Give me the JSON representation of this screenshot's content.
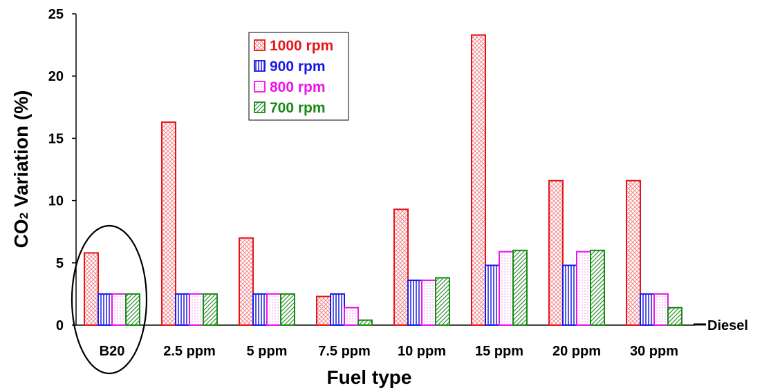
{
  "chart_data": {
    "type": "bar",
    "title": "",
    "xlabel": "Fuel type",
    "ylabel_main": "CO",
    "ylabel_sub": "2",
    "ylabel_rest": " Variation (%)",
    "categories": [
      "B20",
      "2.5 ppm",
      "5 ppm",
      "7.5 ppm",
      "10 ppm",
      "15 ppm",
      "20 ppm",
      "30 ppm"
    ],
    "ylim": [
      0,
      25
    ],
    "yticks": [
      "0",
      "5",
      "10",
      "15",
      "20",
      "25"
    ],
    "baseline_label": "Diesel",
    "highlighted_category": "B20",
    "series": [
      {
        "name": "1000 rpm",
        "color": "#e8131a",
        "pattern": "crosshatch",
        "values": [
          5.8,
          16.3,
          7.0,
          2.3,
          9.3,
          23.3,
          11.6,
          11.6
        ]
      },
      {
        "name": "900 rpm",
        "color": "#1a1ae6",
        "pattern": "vertical",
        "values": [
          2.5,
          2.5,
          2.5,
          2.5,
          3.6,
          4.8,
          4.8,
          2.5
        ]
      },
      {
        "name": "800 rpm",
        "color": "#ee11ee",
        "pattern": "dots",
        "values": [
          2.5,
          2.5,
          2.5,
          1.4,
          3.6,
          5.9,
          5.9,
          2.5
        ]
      },
      {
        "name": "700 rpm",
        "color": "#168a16",
        "pattern": "diagonal",
        "values": [
          2.5,
          2.5,
          2.5,
          0.4,
          3.8,
          6.0,
          6.0,
          1.4
        ]
      }
    ],
    "legend_position": "top-left-inside"
  }
}
